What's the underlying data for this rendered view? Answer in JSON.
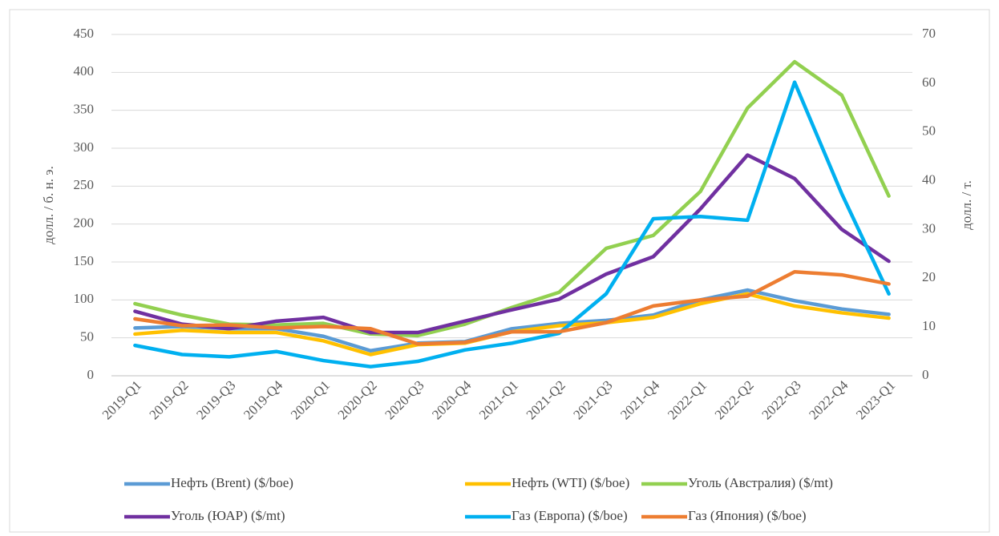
{
  "chart_data": {
    "type": "line",
    "y_label": "долл. / б. н. э.",
    "y2_label": "долл. / т.",
    "categories": [
      "2019-Q1",
      "2019-Q2",
      "2019-Q3",
      "2019-Q4",
      "2020-Q1",
      "2020-Q2",
      "2020-Q3",
      "2020-Q4",
      "2021-Q1",
      "2021-Q2",
      "2021-Q3",
      "2021-Q4",
      "2022-Q1",
      "2022-Q2",
      "2022-Q3",
      "2022-Q4",
      "2023-Q1"
    ],
    "series": [
      {
        "name": "Нефть (Brent) ($/boe)",
        "color": "#5b9bd5",
        "values": [
          63,
          65,
          62,
          62,
          52,
          33,
          43,
          45,
          62,
          69,
          73,
          80,
          100,
          113,
          99,
          88,
          81
        ]
      },
      {
        "name": "Нефть (WTI) ($/boe)",
        "color": "#ffc000",
        "values": [
          55,
          60,
          57,
          57,
          46,
          28,
          41,
          43,
          58,
          66,
          70,
          77,
          95,
          108,
          92,
          83,
          76
        ]
      },
      {
        "name": "Уголь (Австралия) ($/mt)",
        "color": "#92d050",
        "values": [
          95,
          80,
          68,
          67,
          69,
          55,
          53,
          68,
          90,
          110,
          168,
          185,
          243,
          353,
          414,
          370,
          237
        ]
      },
      {
        "name": "Уголь (ЮАР) ($/mt)",
        "color": "#7030a0",
        "values": [
          85,
          68,
          62,
          72,
          77,
          57,
          57,
          72,
          87,
          101,
          134,
          157,
          220,
          291,
          260,
          193,
          151
        ]
      },
      {
        "name": "Газ (Европа) ($/boe)",
        "color": "#00b0f0",
        "values": [
          40,
          28,
          25,
          32,
          20,
          12,
          19,
          34,
          43,
          56,
          108,
          207,
          210,
          205,
          387,
          240,
          108
        ]
      },
      {
        "name": "Газ (Япония) ($/boe)",
        "color": "#ed7d31",
        "values": [
          75,
          66,
          67,
          63,
          65,
          62,
          42,
          44,
          58,
          58,
          70,
          92,
          100,
          105,
          137,
          133,
          121
        ]
      }
    ],
    "ylim": [
      0,
      450
    ],
    "yticks": [
      0,
      50,
      100,
      150,
      200,
      250,
      300,
      350,
      400,
      450
    ],
    "y2lim": [
      0,
      70
    ],
    "y2ticks": [
      0,
      10,
      20,
      30,
      40,
      50,
      60,
      70
    ],
    "grid": true
  }
}
